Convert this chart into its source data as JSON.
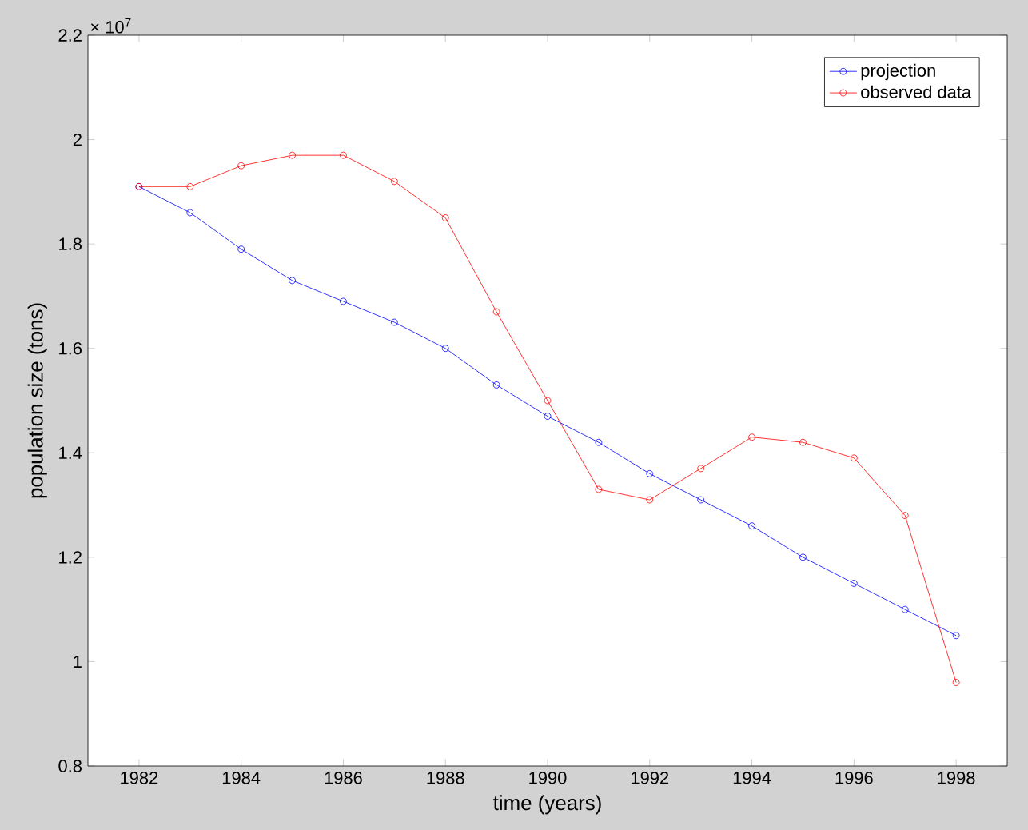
{
  "chart_data": {
    "type": "line",
    "xlabel": "time (years)",
    "ylabel": "population size (tons)",
    "annotations": [
      "× 10$^{7}$"
    ],
    "x": [
      1982,
      1983,
      1984,
      1985,
      1986,
      1987,
      1988,
      1989,
      1990,
      1991,
      1992,
      1993,
      1994,
      1995,
      1996,
      1997,
      1998
    ],
    "series": [
      {
        "name": "projection",
        "color": "#0000ff",
        "values": [
          1.91,
          1.86,
          1.79,
          1.73,
          1.69,
          1.65,
          1.6,
          1.53,
          1.47,
          1.42,
          1.36,
          1.31,
          1.26,
          1.2,
          1.15,
          1.1,
          1.05
        ]
      },
      {
        "name": "observed data",
        "color": "#ff0000",
        "values": [
          1.91,
          1.91,
          1.95,
          1.97,
          1.97,
          1.92,
          1.85,
          1.67,
          1.5,
          1.33,
          1.31,
          1.37,
          1.43,
          1.42,
          1.39,
          1.28,
          0.96
        ]
      }
    ],
    "xlim": [
      1981,
      1999
    ],
    "ylim": [
      0.8,
      2.2
    ],
    "xticks": [
      1982,
      1984,
      1986,
      1988,
      1990,
      1992,
      1994,
      1996,
      1998
    ],
    "yticks": [
      0.8,
      1,
      1.2,
      1.4,
      1.6,
      1.8,
      2,
      2.2
    ],
    "grid": false,
    "legend": "top right",
    "marker": "circle",
    "line_style": "solid"
  }
}
